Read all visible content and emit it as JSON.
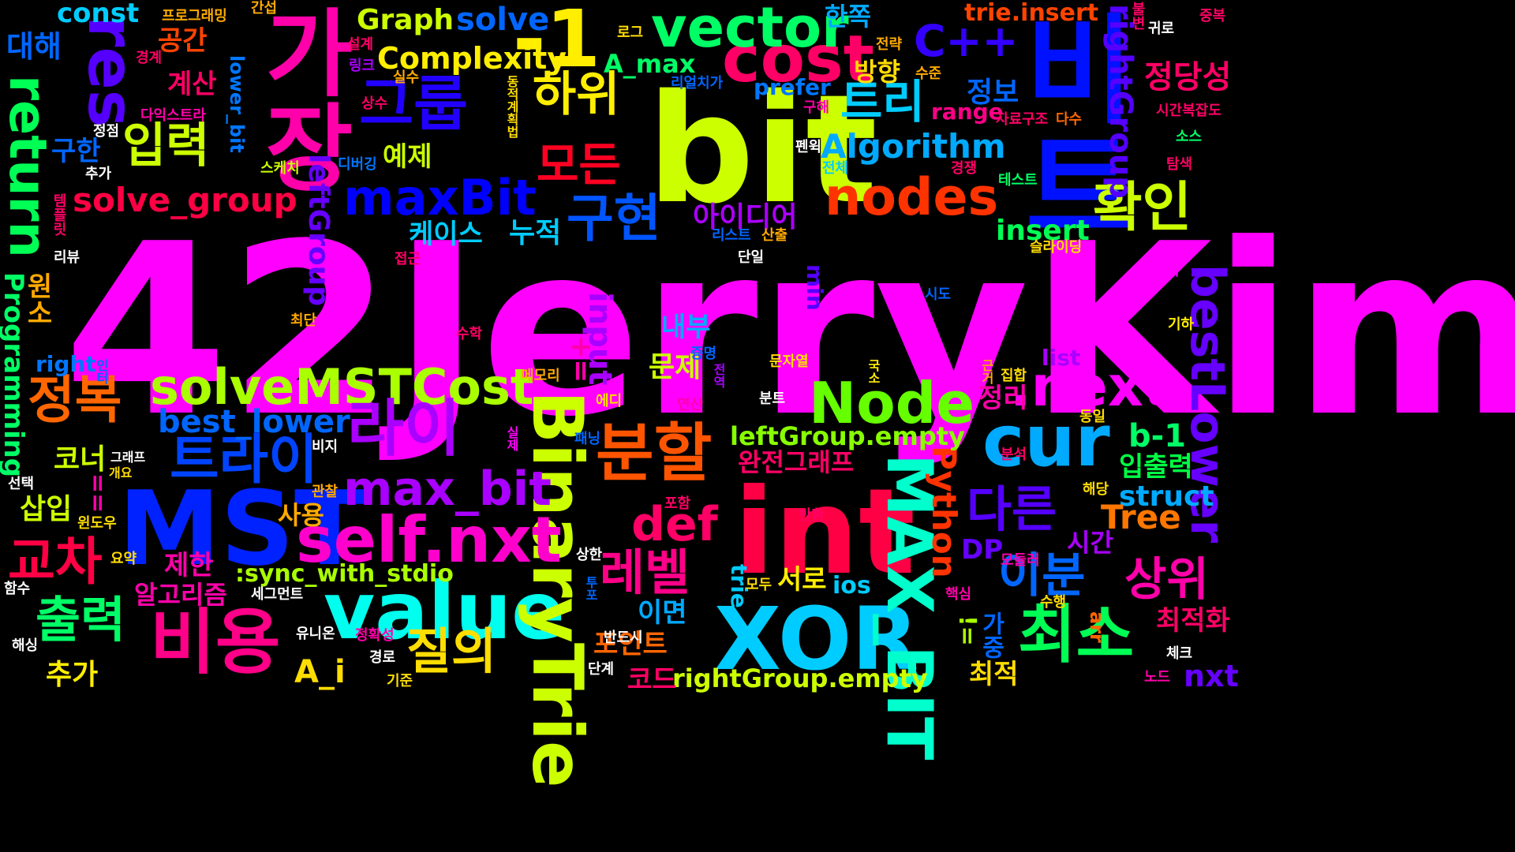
{
  "words": [
    {
      "text": "42JerryKim",
      "color": "#ff00ff"
    },
    {
      "text": "bit",
      "color": "#ccff00"
    },
    {
      "text": "int",
      "color": "#ff0044"
    },
    {
      "text": "비트",
      "color": "#0011ff"
    },
    {
      "text": "가장",
      "color": "#ff00aa"
    },
    {
      "text": "MST",
      "color": "#0022ff"
    },
    {
      "text": "XOR",
      "color": "#00ccff"
    },
    {
      "text": "value",
      "color": "#00ffee"
    },
    {
      "text": "-1",
      "color": "#ffee00"
    },
    {
      "text": "cost",
      "color": "#ff0066"
    },
    {
      "text": "vector",
      "color": "#00ff66"
    },
    {
      "text": "res",
      "color": "#5500ff"
    },
    {
      "text": "BinaryTrie",
      "color": "#ccff00"
    },
    {
      "text": "cur",
      "color": "#00aaff"
    },
    {
      "text": "분할",
      "color": "#ff5500"
    },
    {
      "text": "비용",
      "color": "#ff0088"
    },
    {
      "text": "최소",
      "color": "#00ff55"
    },
    {
      "text": "MAX_BIT",
      "color": "#00ffcc"
    },
    {
      "text": "그룹",
      "color": "#2200ff"
    },
    {
      "text": "return",
      "color": "#00ff55"
    },
    {
      "text": "self.nxt",
      "color": "#ff00cc"
    },
    {
      "text": "solveMSTCost",
      "color": "#aaff00"
    },
    {
      "text": "Node",
      "color": "#66ff00"
    },
    {
      "text": "nodes",
      "color": "#ff3300"
    },
    {
      "text": ".next",
      "color": "#ff00ff"
    },
    {
      "text": "라이",
      "color": "#aa00ff"
    },
    {
      "text": "트라이",
      "color": "#0044ff"
    },
    {
      "text": "max_bit",
      "color": "#aa00ff"
    },
    {
      "text": "maxBit",
      "color": "#0000ff"
    },
    {
      "text": "확인",
      "color": "#ccff00"
    },
    {
      "text": "입력",
      "color": "#ccff00"
    },
    {
      "text": "하위",
      "color": "#ffee00"
    },
    {
      "text": "구현",
      "color": "#0055ff"
    },
    {
      "text": "트리",
      "color": "#00ccff"
    },
    {
      "text": "C++",
      "color": "#3300ff"
    },
    {
      "text": "정복",
      "color": "#ff6600"
    },
    {
      "text": "교차",
      "color": "#ff0044"
    },
    {
      "text": "출력",
      "color": "#00ff66"
    },
    {
      "text": "질의",
      "color": "#ffdd00"
    },
    {
      "text": "다른",
      "color": "#5500ff"
    },
    {
      "text": "레벨",
      "color": "#ff0088"
    },
    {
      "text": "이분",
      "color": "#0066ff"
    },
    {
      "text": "상위",
      "color": "#ff00aa"
    },
    {
      "text": "모든",
      "color": "#ff0022"
    },
    {
      "text": "bestLower",
      "color": "#6600ff"
    },
    {
      "text": "def",
      "color": "#ff0066"
    },
    {
      "text": "Complexity",
      "color": "#ffee00"
    },
    {
      "text": "solve",
      "color": "#0066ff"
    },
    {
      "text": "Graph",
      "color": "#ccff00"
    },
    {
      "text": "const",
      "color": "#00ccff"
    },
    {
      "text": "solve_group",
      "color": "#ff0044"
    },
    {
      "text": "Algorithm",
      "color": "#00aaff"
    },
    {
      "text": "rightGroup",
      "color": "#5500ff"
    },
    {
      "text": "leftGroup",
      "color": "#6600ff"
    },
    {
      "text": "best_lower",
      "color": "#0066ff"
    },
    {
      "text": "Python",
      "color": "#ff3300"
    },
    {
      "text": "Programming",
      "color": "#00ff66"
    },
    {
      "text": "input",
      "color": "#aa00ff"
    },
    {
      "text": "rightGroup.empty",
      "color": "#ccff00"
    },
    {
      "text": "leftGroup.empty",
      "color": "#88ff00"
    },
    {
      "text": ":sync_with_stdio",
      "color": "#aaff00"
    },
    {
      "text": "정당성",
      "color": "#ff0066"
    },
    {
      "text": "A_max",
      "color": "#00ff66"
    },
    {
      "text": "trie.insert",
      "color": "#ff4400"
    },
    {
      "text": "insert",
      "color": "#00ff55"
    },
    {
      "text": "b-1",
      "color": "#00ff66"
    },
    {
      "text": "struct",
      "color": "#00aaff"
    },
    {
      "text": "Tree",
      "color": "#ff7700"
    },
    {
      "text": "nxt",
      "color": "#6600ff"
    },
    {
      "text": "A_i",
      "color": "#ffdd00"
    },
    {
      "text": "DP",
      "color": "#6600ff"
    },
    {
      "text": "ios",
      "color": "#00ccff"
    },
    {
      "text": "prefer",
      "color": "#0077ff"
    },
    {
      "text": "range",
      "color": "#ff0088"
    },
    {
      "text": "lower_bit",
      "color": "#0077ff"
    },
    {
      "text": "right",
      "color": "#0077ff"
    },
    {
      "text": "list",
      "color": "#aa00ff"
    },
    {
      "text": "min",
      "color": "#5500ff"
    },
    {
      "text": "+=",
      "color": "#ff00aa"
    },
    {
      "text": "==",
      "color": "#ff00aa"
    },
    {
      "text": "!=",
      "color": "#aaff00"
    },
    {
      "text": "trie",
      "color": "#00ccff"
    },
    {
      "text": "arr",
      "color": "#ff6600"
    },
    {
      "text": "누적",
      "color": "#00ccff"
    },
    {
      "text": "케이스",
      "color": "#00ccff"
    },
    {
      "text": "아이디어",
      "color": "#aa00ff"
    },
    {
      "text": "완전그래프",
      "color": "#ff0066"
    },
    {
      "text": "입출력",
      "color": "#00ff44"
    },
    {
      "text": "방향",
      "color": "#ffdd00"
    },
    {
      "text": "한쪽",
      "color": "#00aaff"
    },
    {
      "text": "정보",
      "color": "#0066ff"
    },
    {
      "text": "예제",
      "color": "#ccff00"
    },
    {
      "text": "공간",
      "color": "#ff4400"
    },
    {
      "text": "계산",
      "color": "#ff0066"
    },
    {
      "text": "대해",
      "color": "#0066ff"
    },
    {
      "text": "구한",
      "color": "#0066ff"
    },
    {
      "text": "코너",
      "color": "#ccff00"
    },
    {
      "text": "삽입",
      "color": "#ccff00"
    },
    {
      "text": "원소",
      "color": "#ffaa00"
    },
    {
      "text": "추가",
      "color": "#ffee00"
    },
    {
      "text": "사용",
      "color": "#ffaa00"
    },
    {
      "text": "제한",
      "color": "#ff00aa"
    },
    {
      "text": "알고리즘",
      "color": "#ff00aa"
    },
    {
      "text": "이면",
      "color": "#00aaff"
    },
    {
      "text": "포인트",
      "color": "#ff6600"
    },
    {
      "text": "코드",
      "color": "#ff0066"
    },
    {
      "text": "내부",
      "color": "#00aaff"
    },
    {
      "text": "문제",
      "color": "#ccff00"
    },
    {
      "text": "서로",
      "color": "#ffee00"
    },
    {
      "text": "가중",
      "color": "#0066ff"
    },
    {
      "text": "최적",
      "color": "#ffdd00"
    },
    {
      "text": "시간",
      "color": "#aa00ff"
    },
    {
      "text": "최적화",
      "color": "#ff0066"
    },
    {
      "text": "정리",
      "color": "#ff00aa"
    },
    {
      "text": "프로그래밍",
      "color": "#ffaa00"
    },
    {
      "text": "간섭",
      "color": "#ffaa00"
    },
    {
      "text": "불변",
      "color": "#ff0066"
    },
    {
      "text": "중복",
      "color": "#ff0066"
    },
    {
      "text": "귀로",
      "color": "#ffffff"
    },
    {
      "text": "로그",
      "color": "#ffdd00"
    },
    {
      "text": "전략",
      "color": "#ffaa00"
    },
    {
      "text": "설계",
      "color": "#ff0066"
    },
    {
      "text": "링크",
      "color": "#aa00ff"
    },
    {
      "text": "경계",
      "color": "#ff0066"
    },
    {
      "text": "실수",
      "color": "#ffaa00"
    },
    {
      "text": "동적계획법",
      "color": "#ffdd00"
    },
    {
      "text": "리얼치가",
      "color": "#0066ff"
    },
    {
      "text": "수준",
      "color": "#ffaa00"
    },
    {
      "text": "상수",
      "color": "#ff0066"
    },
    {
      "text": "구해",
      "color": "#ff00aa"
    },
    {
      "text": "다익스트라",
      "color": "#ff00aa"
    },
    {
      "text": "정점",
      "color": "#ffffff"
    },
    {
      "text": "자료구조",
      "color": "#ff0066"
    },
    {
      "text": "다수",
      "color": "#ff6600"
    },
    {
      "text": "시간복잡도",
      "color": "#ff0066"
    },
    {
      "text": "소스",
      "color": "#00ff66"
    },
    {
      "text": "펜윅",
      "color": "#ffffff"
    },
    {
      "text": "추가",
      "color": "#ffffff"
    },
    {
      "text": "스케치",
      "color": "#ccff00"
    },
    {
      "text": "디버깅",
      "color": "#0077ff"
    },
    {
      "text": "전체",
      "color": "#00ccff"
    },
    {
      "text": "경쟁",
      "color": "#ff0066"
    },
    {
      "text": "탐색",
      "color": "#ff0066"
    },
    {
      "text": "테스트",
      "color": "#00ff66"
    },
    {
      "text": "리스트",
      "color": "#0066ff"
    },
    {
      "text": "산출",
      "color": "#ffaa00"
    },
    {
      "text": "템플릿",
      "color": "#ff0066"
    },
    {
      "text": "슬라이딩",
      "color": "#ffdd00"
    },
    {
      "text": "리뷰",
      "color": "#ffffff"
    },
    {
      "text": "접근",
      "color": "#ff0066"
    },
    {
      "text": "단일",
      "color": "#ffffff"
    },
    {
      "text": "스택",
      "color": "#ff00ff"
    },
    {
      "text": "시도",
      "color": "#0066ff"
    },
    {
      "text": "최단",
      "color": "#ffaa00"
    },
    {
      "text": "수학",
      "color": "#ff0066"
    },
    {
      "text": "기하",
      "color": "#ffee00"
    },
    {
      "text": "증명",
      "color": "#0066ff"
    },
    {
      "text": "인터",
      "color": "#0066ff"
    },
    {
      "text": "문자열",
      "color": "#ffdd00"
    },
    {
      "text": "국소",
      "color": "#ffee00"
    },
    {
      "text": "집합",
      "color": "#ffdd00"
    },
    {
      "text": "메모리",
      "color": "#ffaa00"
    },
    {
      "text": "전역",
      "color": "#aa00ff"
    },
    {
      "text": "근거",
      "color": "#ffaa00"
    },
    {
      "text": "에디",
      "color": "#ffdd00"
    },
    {
      "text": "연산",
      "color": "#ff00aa"
    },
    {
      "text": "분트",
      "color": "#ffffff"
    },
    {
      "text": "동일",
      "color": "#ffdd00"
    },
    {
      "text": "실제",
      "color": "#ff00ff"
    },
    {
      "text": "그래프",
      "color": "#ffffff"
    },
    {
      "text": "개요",
      "color": "#ffdd00"
    },
    {
      "text": "비지",
      "color": "#ffffff"
    },
    {
      "text": "패닝",
      "color": "#0066ff"
    },
    {
      "text": "분석",
      "color": "#ff0066"
    },
    {
      "text": "선택",
      "color": "#ffffff"
    },
    {
      "text": "관찰",
      "color": "#ffaa00"
    },
    {
      "text": "포함",
      "color": "#ff0066"
    },
    {
      "text": "윈도우",
      "color": "#ffdd00"
    },
    {
      "text": "해당",
      "color": "#ffdd00"
    },
    {
      "text": "반환",
      "color": "#ff0066"
    },
    {
      "text": "요약",
      "color": "#ffdd00"
    },
    {
      "text": "상한",
      "color": "#ffffff"
    },
    {
      "text": "모듈러",
      "color": "#ff00aa"
    },
    {
      "text": "함수",
      "color": "#ffffff"
    },
    {
      "text": "세그먼트",
      "color": "#ffffff"
    },
    {
      "text": "투포",
      "color": "#0066ff"
    },
    {
      "text": "모두",
      "color": "#ffdd00"
    },
    {
      "text": "핵심",
      "color": "#ff00aa"
    },
    {
      "text": "수행",
      "color": "#ffdd00"
    },
    {
      "text": "유니온",
      "color": "#ffffff"
    },
    {
      "text": "반드시",
      "color": "#ffffff"
    },
    {
      "text": "해싱",
      "color": "#ffffff"
    },
    {
      "text": "정확성",
      "color": "#ff00aa"
    },
    {
      "text": "경로",
      "color": "#ffffff"
    },
    {
      "text": "단계",
      "color": "#ffffff"
    },
    {
      "text": "체크",
      "color": "#ffffff"
    },
    {
      "text": "기준",
      "color": "#ffdd00"
    },
    {
      "text": "노드",
      "color": "#ff00aa"
    }
  ]
}
